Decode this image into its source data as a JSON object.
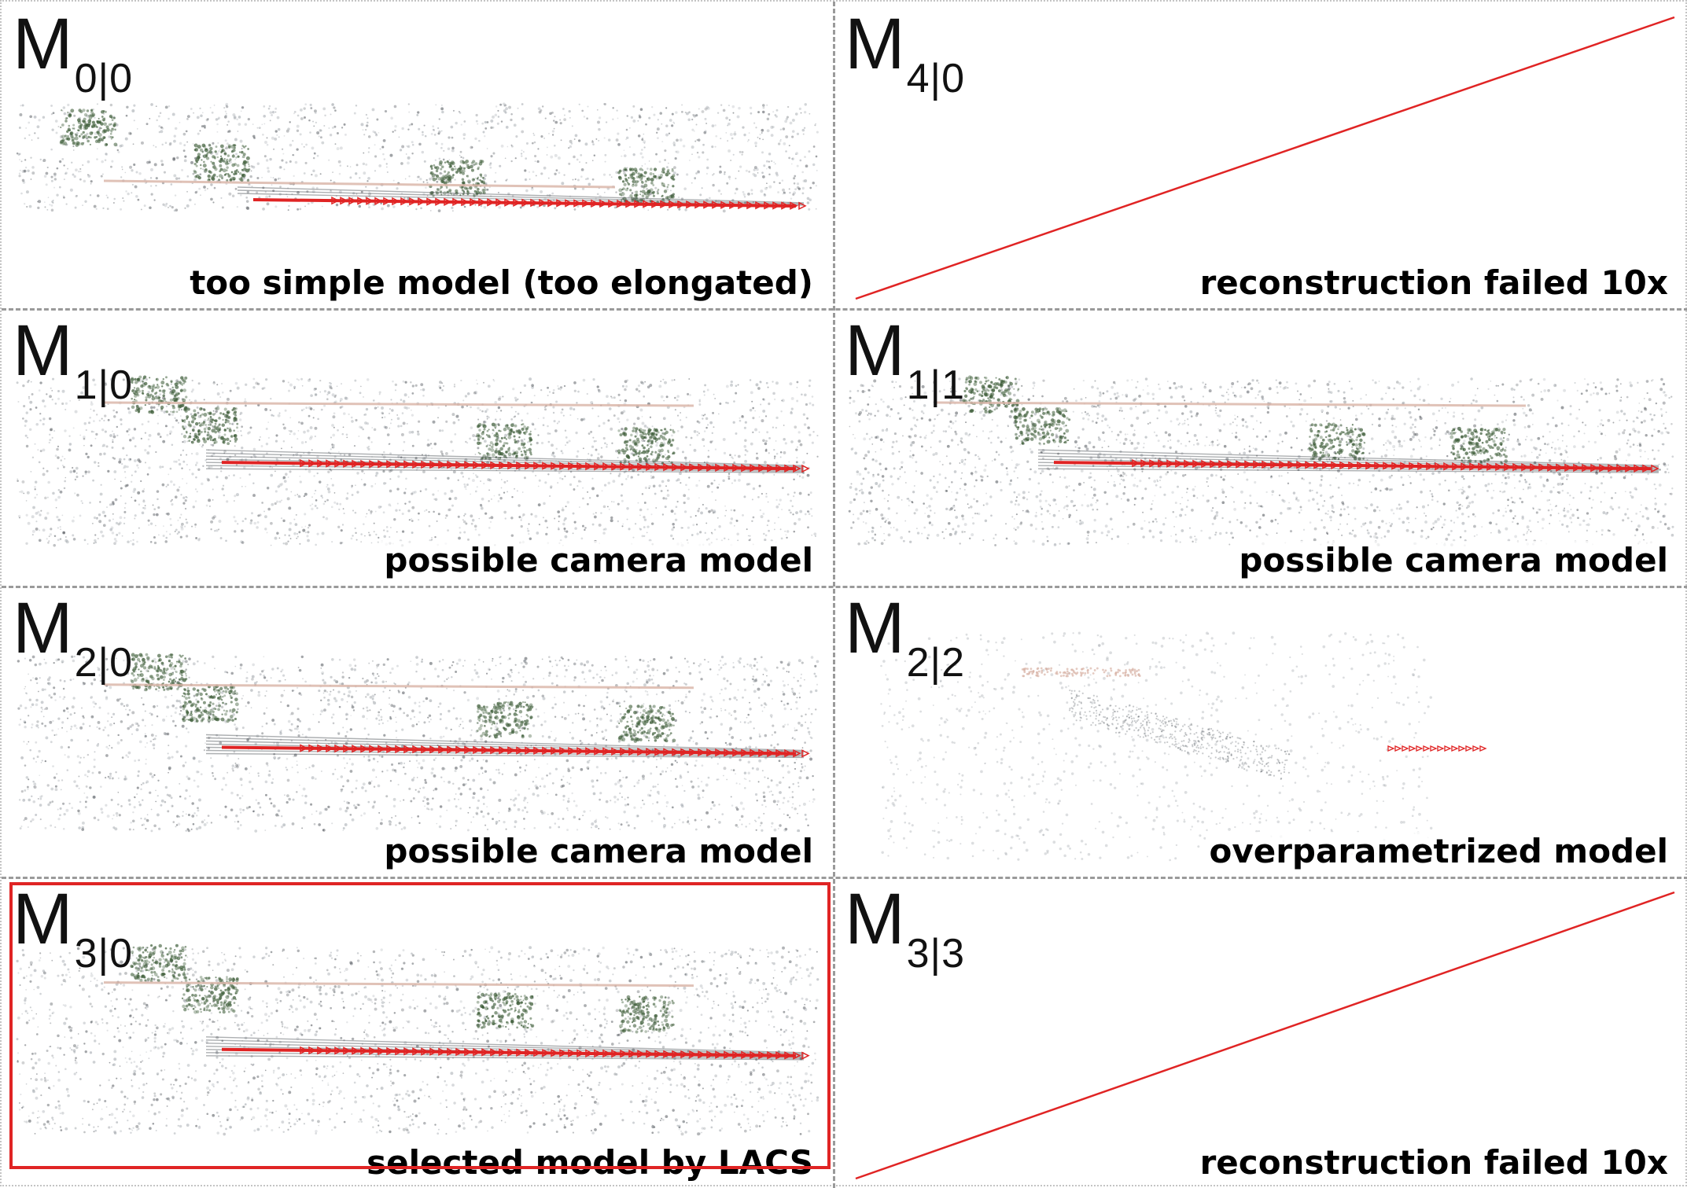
{
  "panels": [
    {
      "id": "p00",
      "model": {
        "base": "M",
        "sub": "0|0"
      },
      "caption": "too simple model (too elongated)",
      "status": "reconstruction",
      "selected": false
    },
    {
      "id": "p40",
      "model": {
        "base": "M",
        "sub": "4|0"
      },
      "caption": "reconstruction failed 10x",
      "status": "failed",
      "selected": false
    },
    {
      "id": "p10",
      "model": {
        "base": "M",
        "sub": "1|0"
      },
      "caption": "possible camera model",
      "status": "reconstruction",
      "selected": false
    },
    {
      "id": "p11",
      "model": {
        "base": "M",
        "sub": "1|1"
      },
      "caption": "possible camera model",
      "status": "reconstruction",
      "selected": false
    },
    {
      "id": "p20",
      "model": {
        "base": "M",
        "sub": "2|0"
      },
      "caption": "possible camera model",
      "status": "reconstruction",
      "selected": false
    },
    {
      "id": "p22",
      "model": {
        "base": "M",
        "sub": "2|2"
      },
      "caption": "overparametrized model",
      "status": "sparse",
      "selected": false
    },
    {
      "id": "p30",
      "model": {
        "base": "M",
        "sub": "3|0"
      },
      "caption": "selected model by LACS",
      "status": "reconstruction",
      "selected": true
    },
    {
      "id": "p33",
      "model": {
        "base": "M",
        "sub": "3|3"
      },
      "caption": "reconstruction failed 10x",
      "status": "failed",
      "selected": false
    }
  ],
  "colors": {
    "trajectory": "#e02424",
    "selected_border": "#e02424",
    "failed_line": "#e02424",
    "points_dark": "#4a4f55",
    "points_light": "#9aa0a6",
    "foliage": "#3f5e3a",
    "road": "#d9b3a6"
  }
}
